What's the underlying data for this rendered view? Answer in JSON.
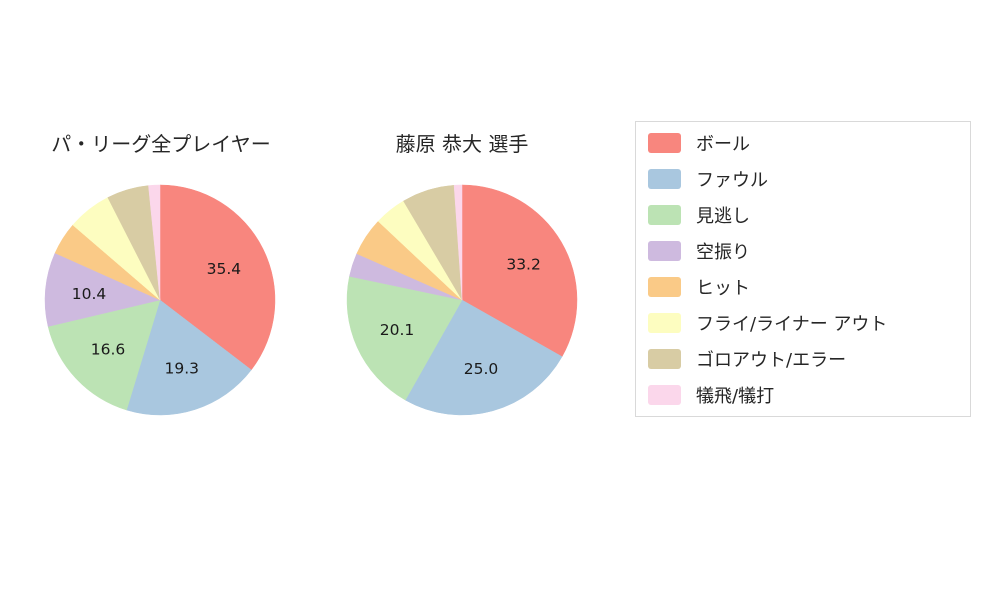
{
  "chart_data": [
    {
      "type": "pie",
      "title": "パ・リーグ全プレイヤー",
      "start_angle_deg": 0,
      "direction": "clockwise",
      "slices": [
        {
          "category": "ボール",
          "value": 35.4,
          "label": "35.4",
          "color": "#f8867e"
        },
        {
          "category": "ファウル",
          "value": 19.3,
          "label": "19.3",
          "color": "#a9c7df"
        },
        {
          "category": "見逃し",
          "value": 16.6,
          "label": "16.6",
          "color": "#bce3b4"
        },
        {
          "category": "空振り",
          "value": 10.4,
          "label": "10.4",
          "color": "#cebadf"
        },
        {
          "category": "ヒット",
          "value": 4.6,
          "label": null,
          "color": "#faca87"
        },
        {
          "category": "フライ/ライナー アウト",
          "value": 6.2,
          "label": null,
          "color": "#fdfdc0"
        },
        {
          "category": "ゴロアウト/エラー",
          "value": 5.9,
          "label": null,
          "color": "#d8cca4"
        },
        {
          "category": "犠飛/犠打",
          "value": 1.6,
          "label": null,
          "color": "#fbd7eb"
        }
      ]
    },
    {
      "type": "pie",
      "title": "藤原 恭大 選手",
      "start_angle_deg": 0,
      "direction": "clockwise",
      "slices": [
        {
          "category": "ボール",
          "value": 33.2,
          "label": "33.2",
          "color": "#f8867e"
        },
        {
          "category": "ファウル",
          "value": 25.0,
          "label": "25.0",
          "color": "#a9c7df"
        },
        {
          "category": "見逃し",
          "value": 20.1,
          "label": "20.1",
          "color": "#bce3b4"
        },
        {
          "category": "空振り",
          "value": 3.3,
          "label": null,
          "color": "#cebadf"
        },
        {
          "category": "ヒット",
          "value": 5.4,
          "label": null,
          "color": "#faca87"
        },
        {
          "category": "フライ/ライナー アウト",
          "value": 4.5,
          "label": null,
          "color": "#fdfdc0"
        },
        {
          "category": "ゴロアウト/エラー",
          "value": 7.4,
          "label": null,
          "color": "#d8cca4"
        },
        {
          "category": "犠飛/犠打",
          "value": 1.1,
          "label": null,
          "color": "#fbd7eb"
        }
      ]
    }
  ],
  "legend": {
    "position": "right",
    "items": [
      {
        "label": "ボール",
        "color": "#f8867e"
      },
      {
        "label": "ファウル",
        "color": "#a9c7df"
      },
      {
        "label": "見逃し",
        "color": "#bce3b4"
      },
      {
        "label": "空振り",
        "color": "#cebadf"
      },
      {
        "label": "ヒット",
        "color": "#faca87"
      },
      {
        "label": "フライ/ライナー アウト",
        "color": "#fdfdc0"
      },
      {
        "label": "ゴロアウト/エラー",
        "color": "#d8cca4"
      },
      {
        "label": "犠飛/犠打",
        "color": "#fbd7eb"
      }
    ]
  }
}
